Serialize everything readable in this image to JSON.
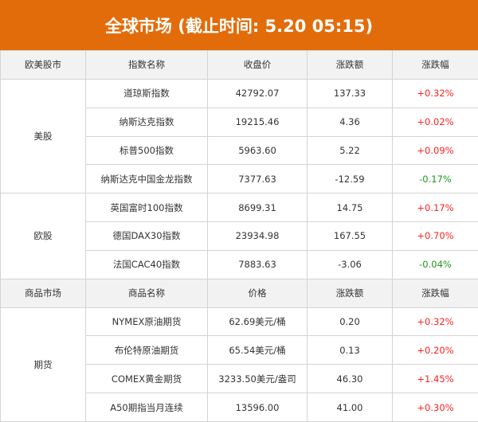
{
  "title": "全球市场 (截止时间: 5.20 05:15)",
  "colors": {
    "header": "#e36c0a",
    "up": "#ff2020",
    "down": "#1a9a1a"
  },
  "stocks": {
    "headers": [
      "欧美股市",
      "指数名称",
      "收盘价",
      "涨跌额",
      "涨跌幅"
    ],
    "groups": [
      {
        "name": "美股",
        "rows": [
          {
            "name": "道琼斯指数",
            "price": "42792.07",
            "change": "137.33",
            "pct": "+0.32%"
          },
          {
            "name": "纳斯达克指数",
            "price": "19215.46",
            "change": "4.36",
            "pct": "+0.02%"
          },
          {
            "name": "标普500指数",
            "price": "5963.60",
            "change": "5.22",
            "pct": "+0.09%"
          },
          {
            "name": "纳斯达克中国金龙指数",
            "price": "7377.63",
            "change": "-12.59",
            "pct": "-0.17%"
          }
        ]
      },
      {
        "name": "欧股",
        "rows": [
          {
            "name": "英国富时100指数",
            "price": "8699.31",
            "change": "14.75",
            "pct": "+0.17%"
          },
          {
            "name": "德国DAX30指数",
            "price": "23934.98",
            "change": "167.55",
            "pct": "+0.70%"
          },
          {
            "name": "法国CAC40指数",
            "price": "7883.63",
            "change": "-3.06",
            "pct": "-0.04%"
          }
        ]
      }
    ]
  },
  "commodities": {
    "headers": [
      "商品市场",
      "商品名称",
      "价格",
      "涨跌额",
      "涨跌幅"
    ],
    "groups": [
      {
        "name": "期货",
        "rows": [
          {
            "name": "NYMEX原油期货",
            "price": "62.69美元/桶",
            "change": "0.20",
            "pct": "+0.32%"
          },
          {
            "name": "布伦特原油期货",
            "price": "65.54美元/桶",
            "change": "0.13",
            "pct": "+0.20%"
          },
          {
            "name": "COMEX黄金期货",
            "price": "3233.50美元/盎司",
            "change": "46.30",
            "pct": "+1.45%"
          },
          {
            "name": "A50期指当月连续",
            "price": "13596.00",
            "change": "41.00",
            "pct": "+0.30%"
          }
        ]
      }
    ]
  }
}
